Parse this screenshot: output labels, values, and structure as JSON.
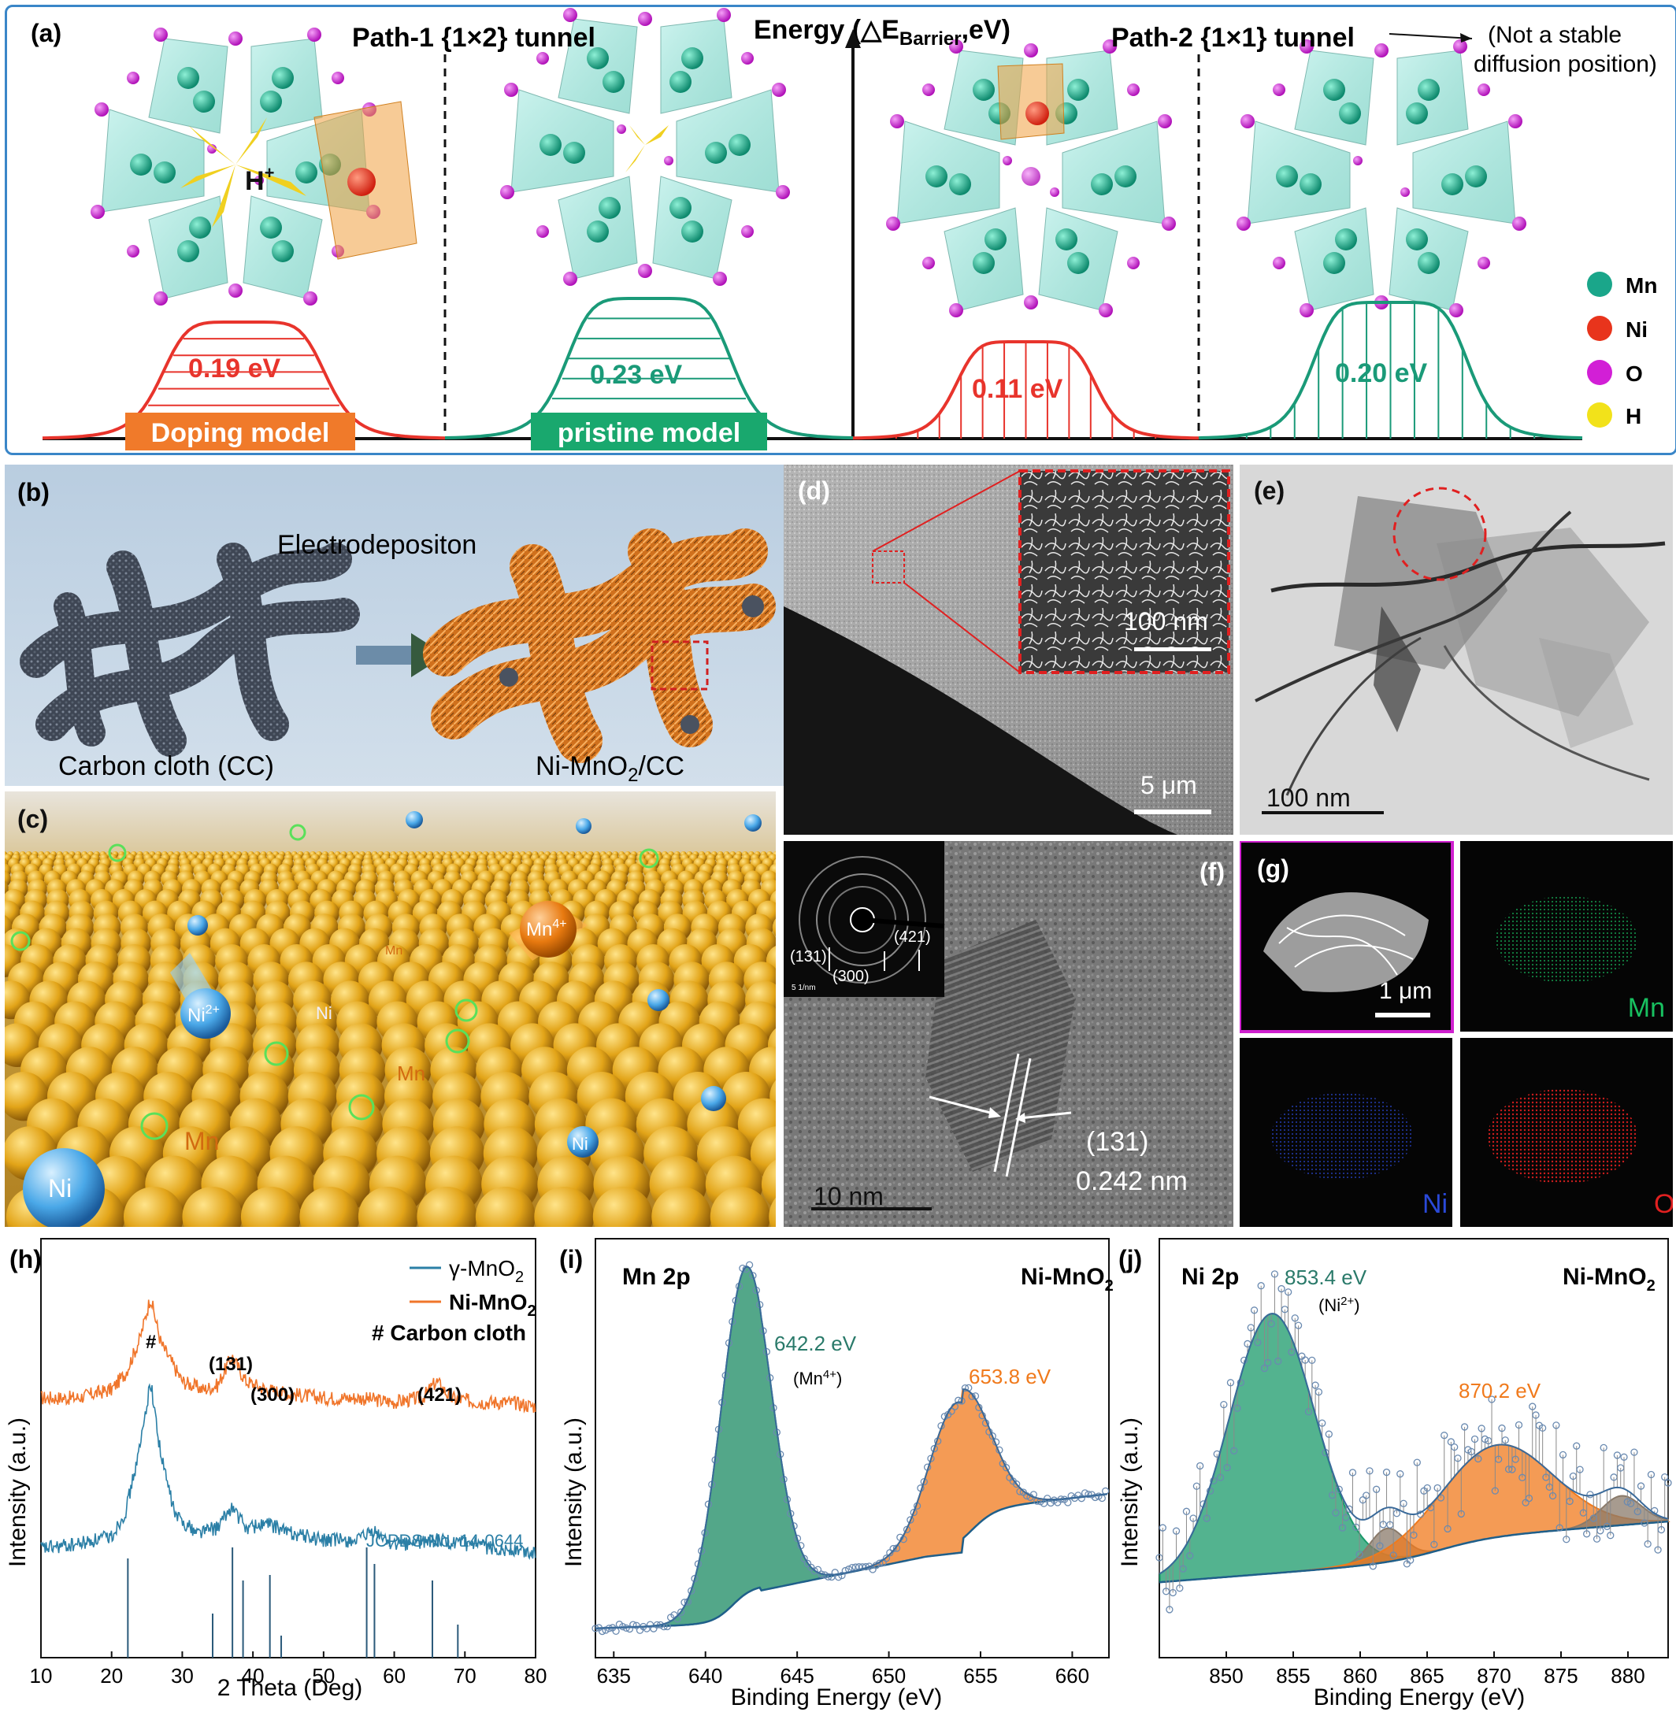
{
  "panel_a": {
    "label": "(a)",
    "path1_title": "Path-1 {1×2} tunnel",
    "energy_axis": "Energy (△E",
    "energy_sub": "Barrier",
    "energy_end": ",eV)",
    "path2_title": "Path-2 {1×1} tunnel",
    "path2_note_1": "(Not a stable",
    "path2_note_2": "diffusion position)",
    "h_plus": "H",
    "h_plus_sup": "+",
    "barriers": [
      "0.19 eV",
      "0.23 eV",
      "0.11 eV",
      "0.20 eV"
    ],
    "doping_label": "Doping model",
    "pristine_label": "pristine model",
    "legend": [
      {
        "label": "Mn",
        "color": "#1aa68a"
      },
      {
        "label": "Ni",
        "color": "#e8341c"
      },
      {
        "label": "O",
        "color": "#d21fd6"
      },
      {
        "label": "H",
        "color": "#f2e21a"
      }
    ],
    "colors": {
      "red": "#e8342c",
      "green": "#1a9a78",
      "orange_bg": "#f07a2a",
      "green_bg": "#19a86e",
      "frame": "#3a86c8"
    }
  },
  "panel_b": {
    "label": "(b)",
    "process": "Electrodepositon",
    "left_caption": "Carbon cloth (CC)",
    "right_caption_pre": "Ni-MnO",
    "right_caption_sub": "2",
    "right_caption_post": "/CC"
  },
  "panel_c": {
    "label": "(c)",
    "ion_mn": "Mn",
    "ion_mn_sup": "4+",
    "ion_ni": "Ni",
    "ion_ni_sup": "2+",
    "atom_labels": [
      "Mn",
      "Ni",
      "Mn",
      "Ni",
      "Mn",
      "Ni",
      "e",
      "e",
      "e",
      "e"
    ]
  },
  "panel_d": {
    "label": "(d)",
    "scale_inset": "100 nm",
    "scale_main": "5 μm"
  },
  "panel_e": {
    "label": "(e)",
    "scale": "100 nm"
  },
  "panel_f": {
    "label": "(f)",
    "saed": [
      "(131)",
      "(300)",
      "(421)"
    ],
    "saed_scale": "5 1/nm",
    "plane": "(131)",
    "spacing": "0.242 nm",
    "scale": "10 nm"
  },
  "panel_g": {
    "label": "(g)",
    "scale": "1 μm",
    "maps": [
      "Mn",
      "Ni",
      "O"
    ],
    "map_colors": [
      "#18c060",
      "#2a49d8",
      "#e02020"
    ]
  },
  "panel_h": {
    "label": "(h)",
    "legend_gamma": "γ-MnO",
    "legend_gamma_sub": "2",
    "legend_ni": "Ni-MnO",
    "legend_ni_sub": "2",
    "legend_cc": "# Carbon cloth",
    "peak_hash": "#",
    "peaks": [
      "(131)",
      "(300)",
      "(421)"
    ],
    "ref_label": "JCPDS No. 14-0644",
    "xlabel": "2 Theta (Deg)",
    "ylabel": "Intensity (a.u.)"
  },
  "panel_i": {
    "label": "(i)",
    "corner_left": "Mn 2p",
    "corner_right_pre": "Ni-MnO",
    "corner_right_sub": "2",
    "peak1": "642.2 eV",
    "peak1_note": "(Mn",
    "peak1_note_sup": "4+",
    "peak1_note_end": ")",
    "peak2": "653.8 eV",
    "xlabel": "Binding Energy (eV)",
    "ylabel": "Intensity (a.u.)"
  },
  "panel_j": {
    "label": "(j)",
    "corner_left": "Ni 2p",
    "corner_right_pre": "Ni-MnO",
    "corner_right_sub": "2",
    "peak1": "853.4 eV",
    "peak1_note": "(Ni",
    "peak1_note_sup": "2+",
    "peak1_note_end": ")",
    "peak2": "870.2 eV",
    "xlabel": "Binding Energy (eV)",
    "ylabel": "Intensity (a.u.)"
  },
  "chart_data": [
    {
      "type": "line",
      "id": "h",
      "xlabel": "2 Theta (Deg)",
      "ylabel": "Intensity (a.u.)",
      "xlim": [
        10,
        80
      ],
      "x_ticks": [
        10,
        20,
        30,
        40,
        50,
        60,
        70,
        80
      ],
      "series": [
        {
          "name": "Ni-MnO2",
          "color": "#f0752a",
          "x": [
            10,
            15,
            20,
            22,
            24,
            25.5,
            27,
            30,
            33,
            35,
            37,
            39,
            42,
            45,
            50,
            55,
            60,
            64,
            66,
            68,
            72,
            76,
            80
          ],
          "y": [
            0.62,
            0.62,
            0.64,
            0.68,
            0.76,
            0.86,
            0.75,
            0.66,
            0.64,
            0.65,
            0.72,
            0.66,
            0.64,
            0.63,
            0.62,
            0.62,
            0.61,
            0.62,
            0.66,
            0.62,
            0.61,
            0.61,
            0.6
          ]
        },
        {
          "name": "γ-MnO2",
          "color": "#2b7fa6",
          "x": [
            10,
            15,
            20,
            22,
            24,
            25.5,
            27,
            29,
            32,
            35,
            37,
            39,
            42,
            45,
            50,
            55,
            57,
            60,
            66,
            70,
            75,
            80
          ],
          "y": [
            0.26,
            0.27,
            0.29,
            0.35,
            0.5,
            0.66,
            0.48,
            0.34,
            0.3,
            0.31,
            0.36,
            0.31,
            0.32,
            0.3,
            0.28,
            0.28,
            0.3,
            0.27,
            0.28,
            0.27,
            0.26,
            0.25
          ]
        }
      ],
      "reference_sticks": {
        "name": "JCPDS No. 14-0644",
        "x": [
          22.3,
          34.3,
          37.1,
          38.6,
          42.4,
          44.0,
          56.1,
          57.2,
          65.4,
          69.0
        ],
        "h": [
          0.9,
          0.4,
          1.0,
          0.7,
          0.75,
          0.2,
          1.0,
          0.85,
          0.7,
          0.3
        ]
      }
    },
    {
      "type": "area",
      "id": "i",
      "xlabel": "Binding Energy (eV)",
      "ylabel": "Intensity (a.u.)",
      "xlim": [
        634,
        662
      ],
      "x_ticks": [
        635,
        640,
        645,
        650,
        655,
        660
      ],
      "peaks": [
        {
          "center": 642.2,
          "label": "642.2 eV",
          "height": 0.78,
          "width": 1.4,
          "color": "#1a8a62"
        },
        {
          "center": 653.8,
          "label": "653.8 eV",
          "height": 0.36,
          "width": 1.6,
          "color": "#f07a1c"
        }
      ]
    },
    {
      "type": "area",
      "id": "j",
      "xlabel": "Binding Energy (eV)",
      "ylabel": "Intensity (a.u.)",
      "xlim": [
        845,
        883
      ],
      "x_ticks": [
        850,
        855,
        860,
        865,
        870,
        875,
        880
      ],
      "peaks": [
        {
          "center": 853.4,
          "label": "853.4 eV",
          "height": 0.62,
          "width": 3.2,
          "color": "#1a9a6a"
        },
        {
          "center": 862.0,
          "label": "",
          "height": 0.08,
          "width": 1.3,
          "color": "#8a7a6a"
        },
        {
          "center": 870.2,
          "label": "870.2 eV",
          "height": 0.22,
          "width": 4.2,
          "color": "#f07a1c"
        },
        {
          "center": 879.5,
          "label": "",
          "height": 0.07,
          "width": 1.5,
          "color": "#8a7a6a"
        }
      ]
    }
  ]
}
